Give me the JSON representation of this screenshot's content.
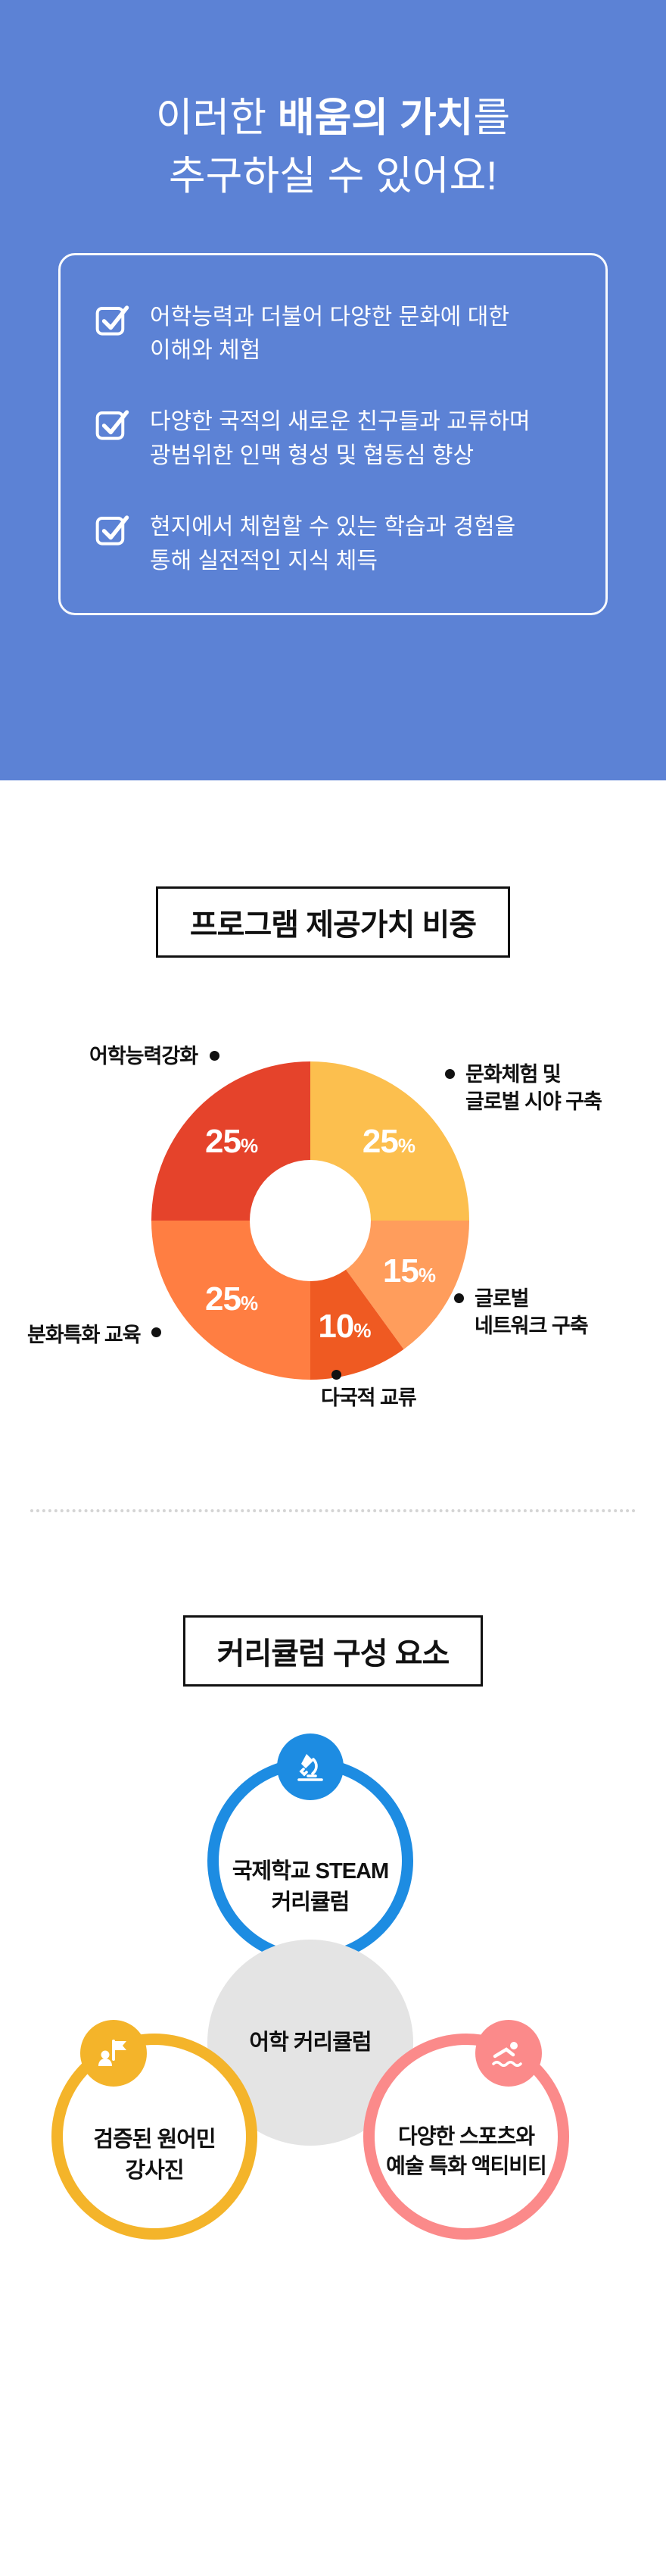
{
  "hero": {
    "background_color": "#5c82d5",
    "title_line1_pre": "이러한 ",
    "title_line1_bold": "배움의 가치",
    "title_line1_post": "를",
    "title_line2": "추구하실 수 있어요!",
    "benefits": [
      {
        "text": "어학능력과 더불어 다양한 문화에 대한\n이해와 체험"
      },
      {
        "text": "다양한 국적의 새로운 친구들과 교류하며\n광범위한 인맥 형성 및 협동심 향상"
      },
      {
        "text": "현지에서 체험할 수 있는 학습과 경험을\n통해 실전적인 지식 체득"
      }
    ]
  },
  "value_section": {
    "title": "프로그램 제공가치 비중"
  },
  "chart_data": {
    "type": "pie",
    "donut": true,
    "start_angle_deg": 0,
    "direction": "clockwise",
    "value_suffix": "%",
    "slices": [
      {
        "label": "문화체험 및 글로벌 시야 구축",
        "value": 25,
        "color": "#fcbf4e"
      },
      {
        "label": "글로벌 네트워크 구축",
        "value": 15,
        "color": "#ff9d5c"
      },
      {
        "label": "다국적 교류",
        "value": 10,
        "color": "#ef5a22"
      },
      {
        "label": "분화특화 교육",
        "value": 25,
        "color": "#ff7e42"
      },
      {
        "label": "어학능력강화",
        "value": 25,
        "color": "#e5432b"
      }
    ]
  },
  "chart_labels": {
    "lang": "어학능력강화",
    "culture": "문화체험 및\n글로벌 시야 구축",
    "network": "글로벌\n네트워크 구축",
    "multi": "다국적 교류",
    "special": "분화특화 교육"
  },
  "curriculum_section": {
    "title": "커리큘럼 구성 요소",
    "items": [
      {
        "id": "steam",
        "text": "국제학교 STEAM\n커리큘럼",
        "color": "#1d8ce2"
      },
      {
        "id": "language",
        "text": "어학 커리큘럼",
        "color": "#e4e4e4"
      },
      {
        "id": "teachers",
        "text": "검증된 원어민\n강사진",
        "color": "#f4b42a"
      },
      {
        "id": "activity",
        "text": "다양한 스포츠와\n예술 특화 액티비티",
        "color": "#fb8a8a"
      }
    ]
  }
}
